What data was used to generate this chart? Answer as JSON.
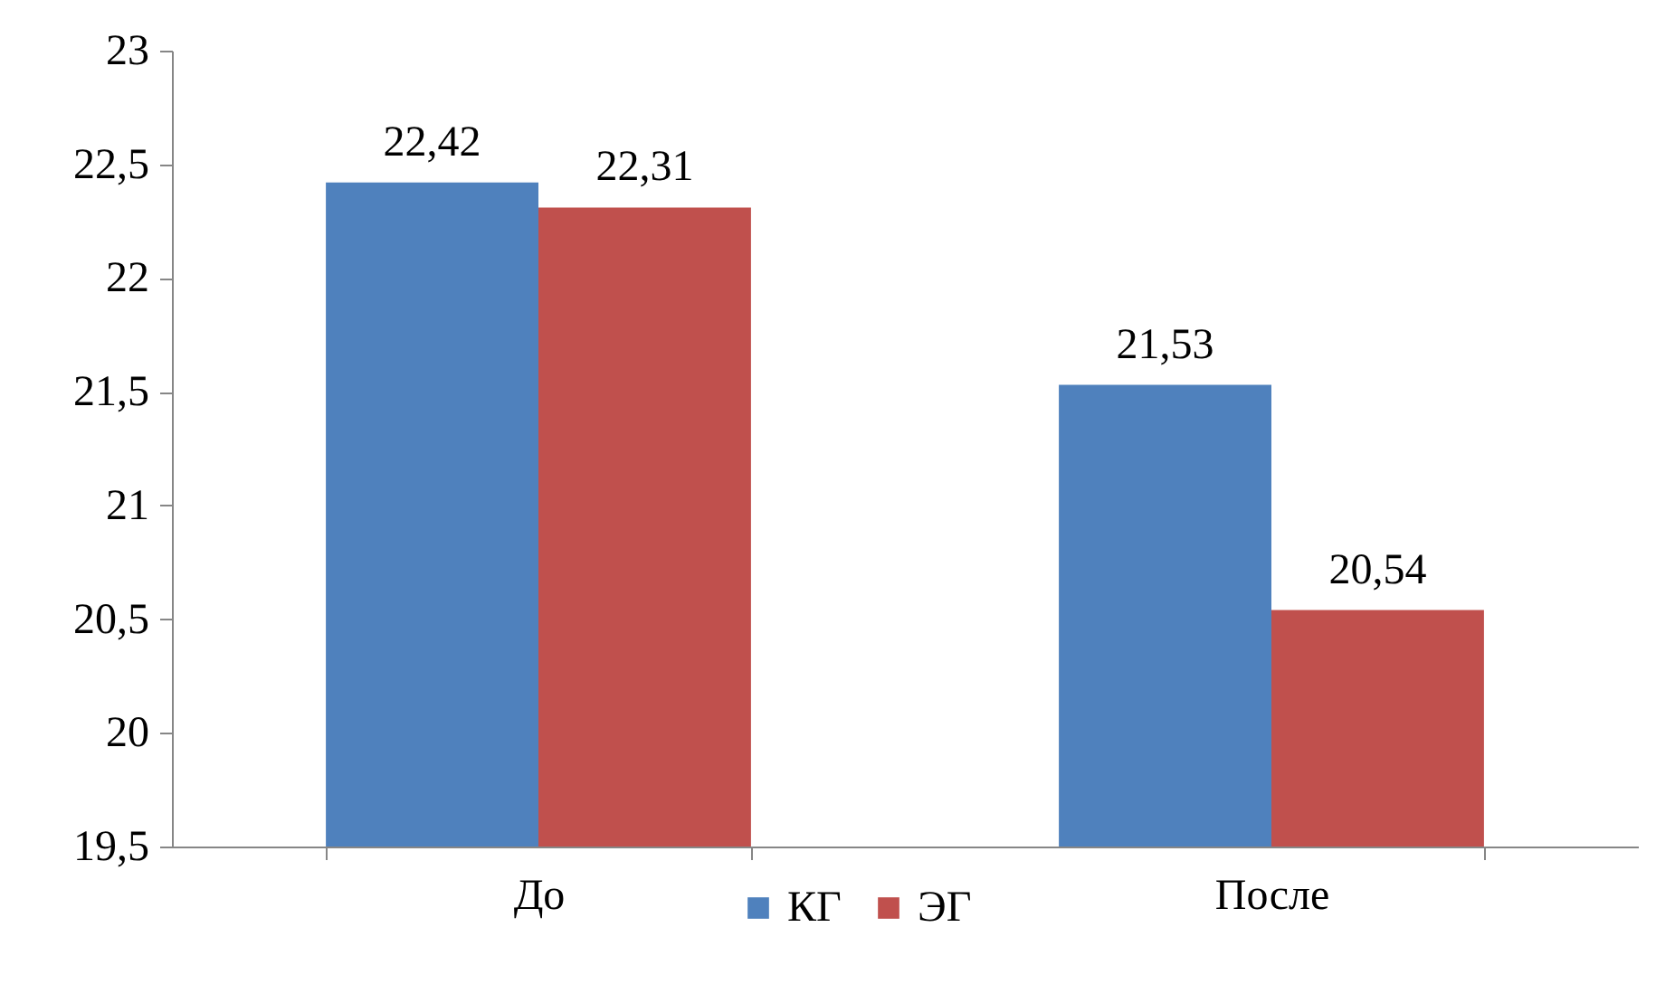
{
  "chart_data": {
    "type": "bar",
    "categories": [
      "До",
      "После"
    ],
    "series": [
      {
        "name": "КГ",
        "color": "#4f81bd",
        "values": [
          22.42,
          21.53
        ],
        "value_labels": [
          "22,42",
          "21,53"
        ]
      },
      {
        "name": "ЭГ",
        "color": "#c0504d",
        "values": [
          22.31,
          20.54
        ],
        "value_labels": [
          "22,31",
          "20,54"
        ]
      }
    ],
    "ylim": [
      19.5,
      23
    ],
    "yticks": [
      {
        "value": 19.5,
        "label": "19,5"
      },
      20,
      {
        "value": 20.5,
        "label": "20,5"
      },
      21,
      {
        "value": 21.5,
        "label": "21,5"
      },
      22,
      {
        "value": 22.5,
        "label": "22,5"
      },
      23
    ],
    "legend": "bottom"
  }
}
